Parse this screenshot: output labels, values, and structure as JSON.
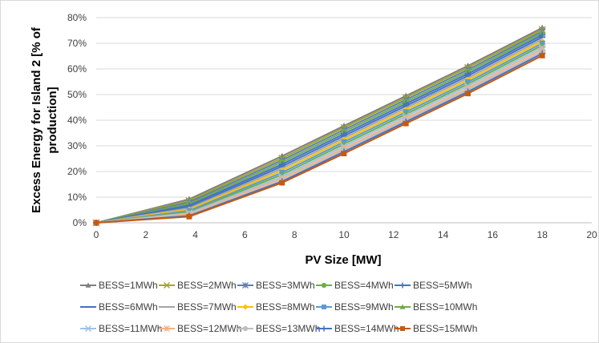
{
  "chart_data": {
    "type": "line",
    "title": "",
    "xlabel": "PV Size [MW]",
    "ylabel_lines": [
      "Excess Energy for Island 2 [% of",
      "production]"
    ],
    "x": [
      0,
      3.75,
      7.5,
      10,
      12.5,
      15,
      18
    ],
    "xlim": [
      0,
      20
    ],
    "ylim": [
      0,
      80
    ],
    "x_ticks": [
      0,
      2,
      4,
      6,
      8,
      10,
      12,
      14,
      16,
      18,
      20
    ],
    "y_ticks": [
      0,
      10,
      20,
      30,
      40,
      50,
      60,
      70,
      80
    ],
    "x_tick_labels": [
      "0",
      "2",
      "4",
      "6",
      "8",
      "10",
      "12",
      "14",
      "16",
      "18",
      "20"
    ],
    "y_tick_labels": [
      "0%",
      "10%",
      "20%",
      "30%",
      "40%",
      "50%",
      "60%",
      "70%",
      "80%"
    ],
    "grid": "horizontal",
    "legend_position": "bottom",
    "series": [
      {
        "name": "BESS=1MWh",
        "color": "#7f7f7f",
        "marker": "triangle",
        "values": [
          0,
          9.2,
          26.0,
          37.8,
          49.5,
          61.2,
          76.0
        ]
      },
      {
        "name": "BESS=2MWh",
        "color": "#a5a52a",
        "marker": "x",
        "values": [
          0,
          8.6,
          25.2,
          37.1,
          48.8,
          60.5,
          75.3
        ]
      },
      {
        "name": "BESS=3MWh",
        "color": "#5b7fb3",
        "marker": "asterisk",
        "values": [
          0,
          8.0,
          24.4,
          36.3,
          48.0,
          59.7,
          74.6
        ]
      },
      {
        "name": "BESS=4MWh",
        "color": "#70ad47",
        "marker": "circle",
        "values": [
          0,
          7.4,
          23.6,
          35.5,
          47.2,
          58.9,
          73.9
        ]
      },
      {
        "name": "BESS=5MWh",
        "color": "#4472c4",
        "marker": "plus",
        "values": [
          0,
          6.8,
          22.8,
          34.7,
          46.4,
          58.1,
          73.2
        ]
      },
      {
        "name": "BESS=6MWh",
        "color": "#4472c4",
        "marker": "dash",
        "values": [
          0,
          6.2,
          22.0,
          33.9,
          45.6,
          57.3,
          72.4
        ]
      },
      {
        "name": "BESS=7MWh",
        "color": "#a5a5a5",
        "marker": "none",
        "values": [
          0,
          5.7,
          21.2,
          33.1,
          44.8,
          56.5,
          71.6
        ]
      },
      {
        "name": "BESS=8MWh",
        "color": "#ffc000",
        "marker": "diamond",
        "values": [
          0,
          5.2,
          20.4,
          32.3,
          44.0,
          55.7,
          70.8
        ]
      },
      {
        "name": "BESS=9MWh",
        "color": "#5b9bd5",
        "marker": "square",
        "values": [
          0,
          4.7,
          19.6,
          31.5,
          43.2,
          54.9,
          70.0
        ]
      },
      {
        "name": "BESS=10MWh",
        "color": "#70ad47",
        "marker": "triangle",
        "values": [
          0,
          4.2,
          18.8,
          30.7,
          42.4,
          54.1,
          69.2
        ]
      },
      {
        "name": "BESS=11MWh",
        "color": "#9dc3e6",
        "marker": "x",
        "values": [
          0,
          3.8,
          18.0,
          29.9,
          41.6,
          53.3,
          68.4
        ]
      },
      {
        "name": "BESS=12MWh",
        "color": "#f4b183",
        "marker": "asterisk",
        "values": [
          0,
          3.4,
          17.3,
          29.1,
          40.8,
          52.5,
          67.6
        ]
      },
      {
        "name": "BESS=13MWh",
        "color": "#bfbfbf",
        "marker": "circle",
        "values": [
          0,
          3.0,
          16.6,
          28.4,
          40.1,
          51.8,
          66.8
        ]
      },
      {
        "name": "BESS=14MWh",
        "color": "#4472c4",
        "marker": "plus",
        "values": [
          0,
          2.7,
          16.1,
          27.7,
          39.4,
          51.1,
          66.0
        ]
      },
      {
        "name": "BESS=15MWh",
        "color": "#c55a11",
        "marker": "square",
        "values": [
          0,
          2.4,
          15.6,
          27.0,
          38.7,
          50.4,
          65.2
        ]
      }
    ]
  }
}
